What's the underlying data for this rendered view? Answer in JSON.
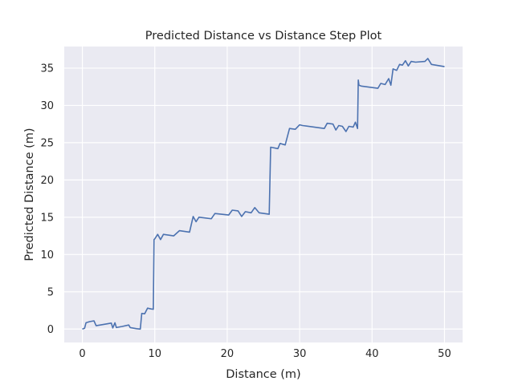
{
  "chart_data": {
    "type": "line",
    "title": "Predicted Distance vs Distance Step Plot",
    "xlabel": "Distance (m)",
    "ylabel": "Predicted Distance (m)",
    "xlim": [
      -2.5,
      52.5
    ],
    "ylim": [
      -1.8,
      37.9
    ],
    "xticks": [
      0,
      10,
      20,
      30,
      40,
      50
    ],
    "yticks": [
      0,
      5,
      10,
      15,
      20,
      25,
      30,
      35
    ],
    "grid": true,
    "line_color": "#4c72b0",
    "background_color": "#eaeaf2",
    "grid_color": "#ffffff",
    "series": [
      {
        "x": [
          0,
          0.3,
          0.5,
          1.0,
          1.6,
          1.9,
          2.8,
          4.0,
          4.2,
          4.5,
          4.7,
          5.5,
          6.4,
          6.6,
          7.5,
          8.0,
          8.2,
          8.6,
          9.0,
          9.5,
          9.8,
          9.9,
          10.0,
          10.4,
          10.8,
          11.2,
          12.6,
          13.4,
          14.8,
          15.3,
          15.7,
          16.1,
          17.8,
          18.3,
          20.2,
          20.7,
          21.5,
          22.0,
          22.5,
          23.3,
          23.8,
          24.4,
          25.8,
          26.0,
          27.0,
          27.3,
          28.0,
          28.6,
          29.4,
          30.0,
          30.4,
          33.4,
          33.8,
          34.6,
          35.0,
          35.4,
          35.9,
          36.4,
          36.8,
          37.4,
          37.7,
          38.0,
          38.1,
          38.2,
          38.5,
          40.8,
          41.2,
          41.8,
          42.3,
          42.6,
          42.9,
          43.4,
          43.8,
          44.2,
          44.6,
          45.0,
          45.4,
          46.0,
          47.3,
          47.7,
          48.2,
          50.0
        ],
        "y": [
          0,
          0.1,
          0.85,
          1.0,
          1.1,
          0.45,
          0.6,
          0.8,
          0.15,
          0.85,
          0.2,
          0.35,
          0.55,
          0.2,
          0.05,
          0,
          2.1,
          2.05,
          2.8,
          2.7,
          2.65,
          12.0,
          12.1,
          12.7,
          12.0,
          12.7,
          12.5,
          13.2,
          13.0,
          15.1,
          14.4,
          15.0,
          14.8,
          15.5,
          15.3,
          15.95,
          15.85,
          15.1,
          15.75,
          15.6,
          16.3,
          15.6,
          15.4,
          24.4,
          24.2,
          24.9,
          24.7,
          26.9,
          26.8,
          27.4,
          27.3,
          26.9,
          27.6,
          27.5,
          26.7,
          27.3,
          27.2,
          26.5,
          27.2,
          27.1,
          27.75,
          26.9,
          33.4,
          32.7,
          32.6,
          32.3,
          32.95,
          32.8,
          33.6,
          32.7,
          34.9,
          34.7,
          35.5,
          35.4,
          36.0,
          35.3,
          35.9,
          35.8,
          35.9,
          36.3,
          35.5,
          35.2
        ]
      }
    ]
  }
}
